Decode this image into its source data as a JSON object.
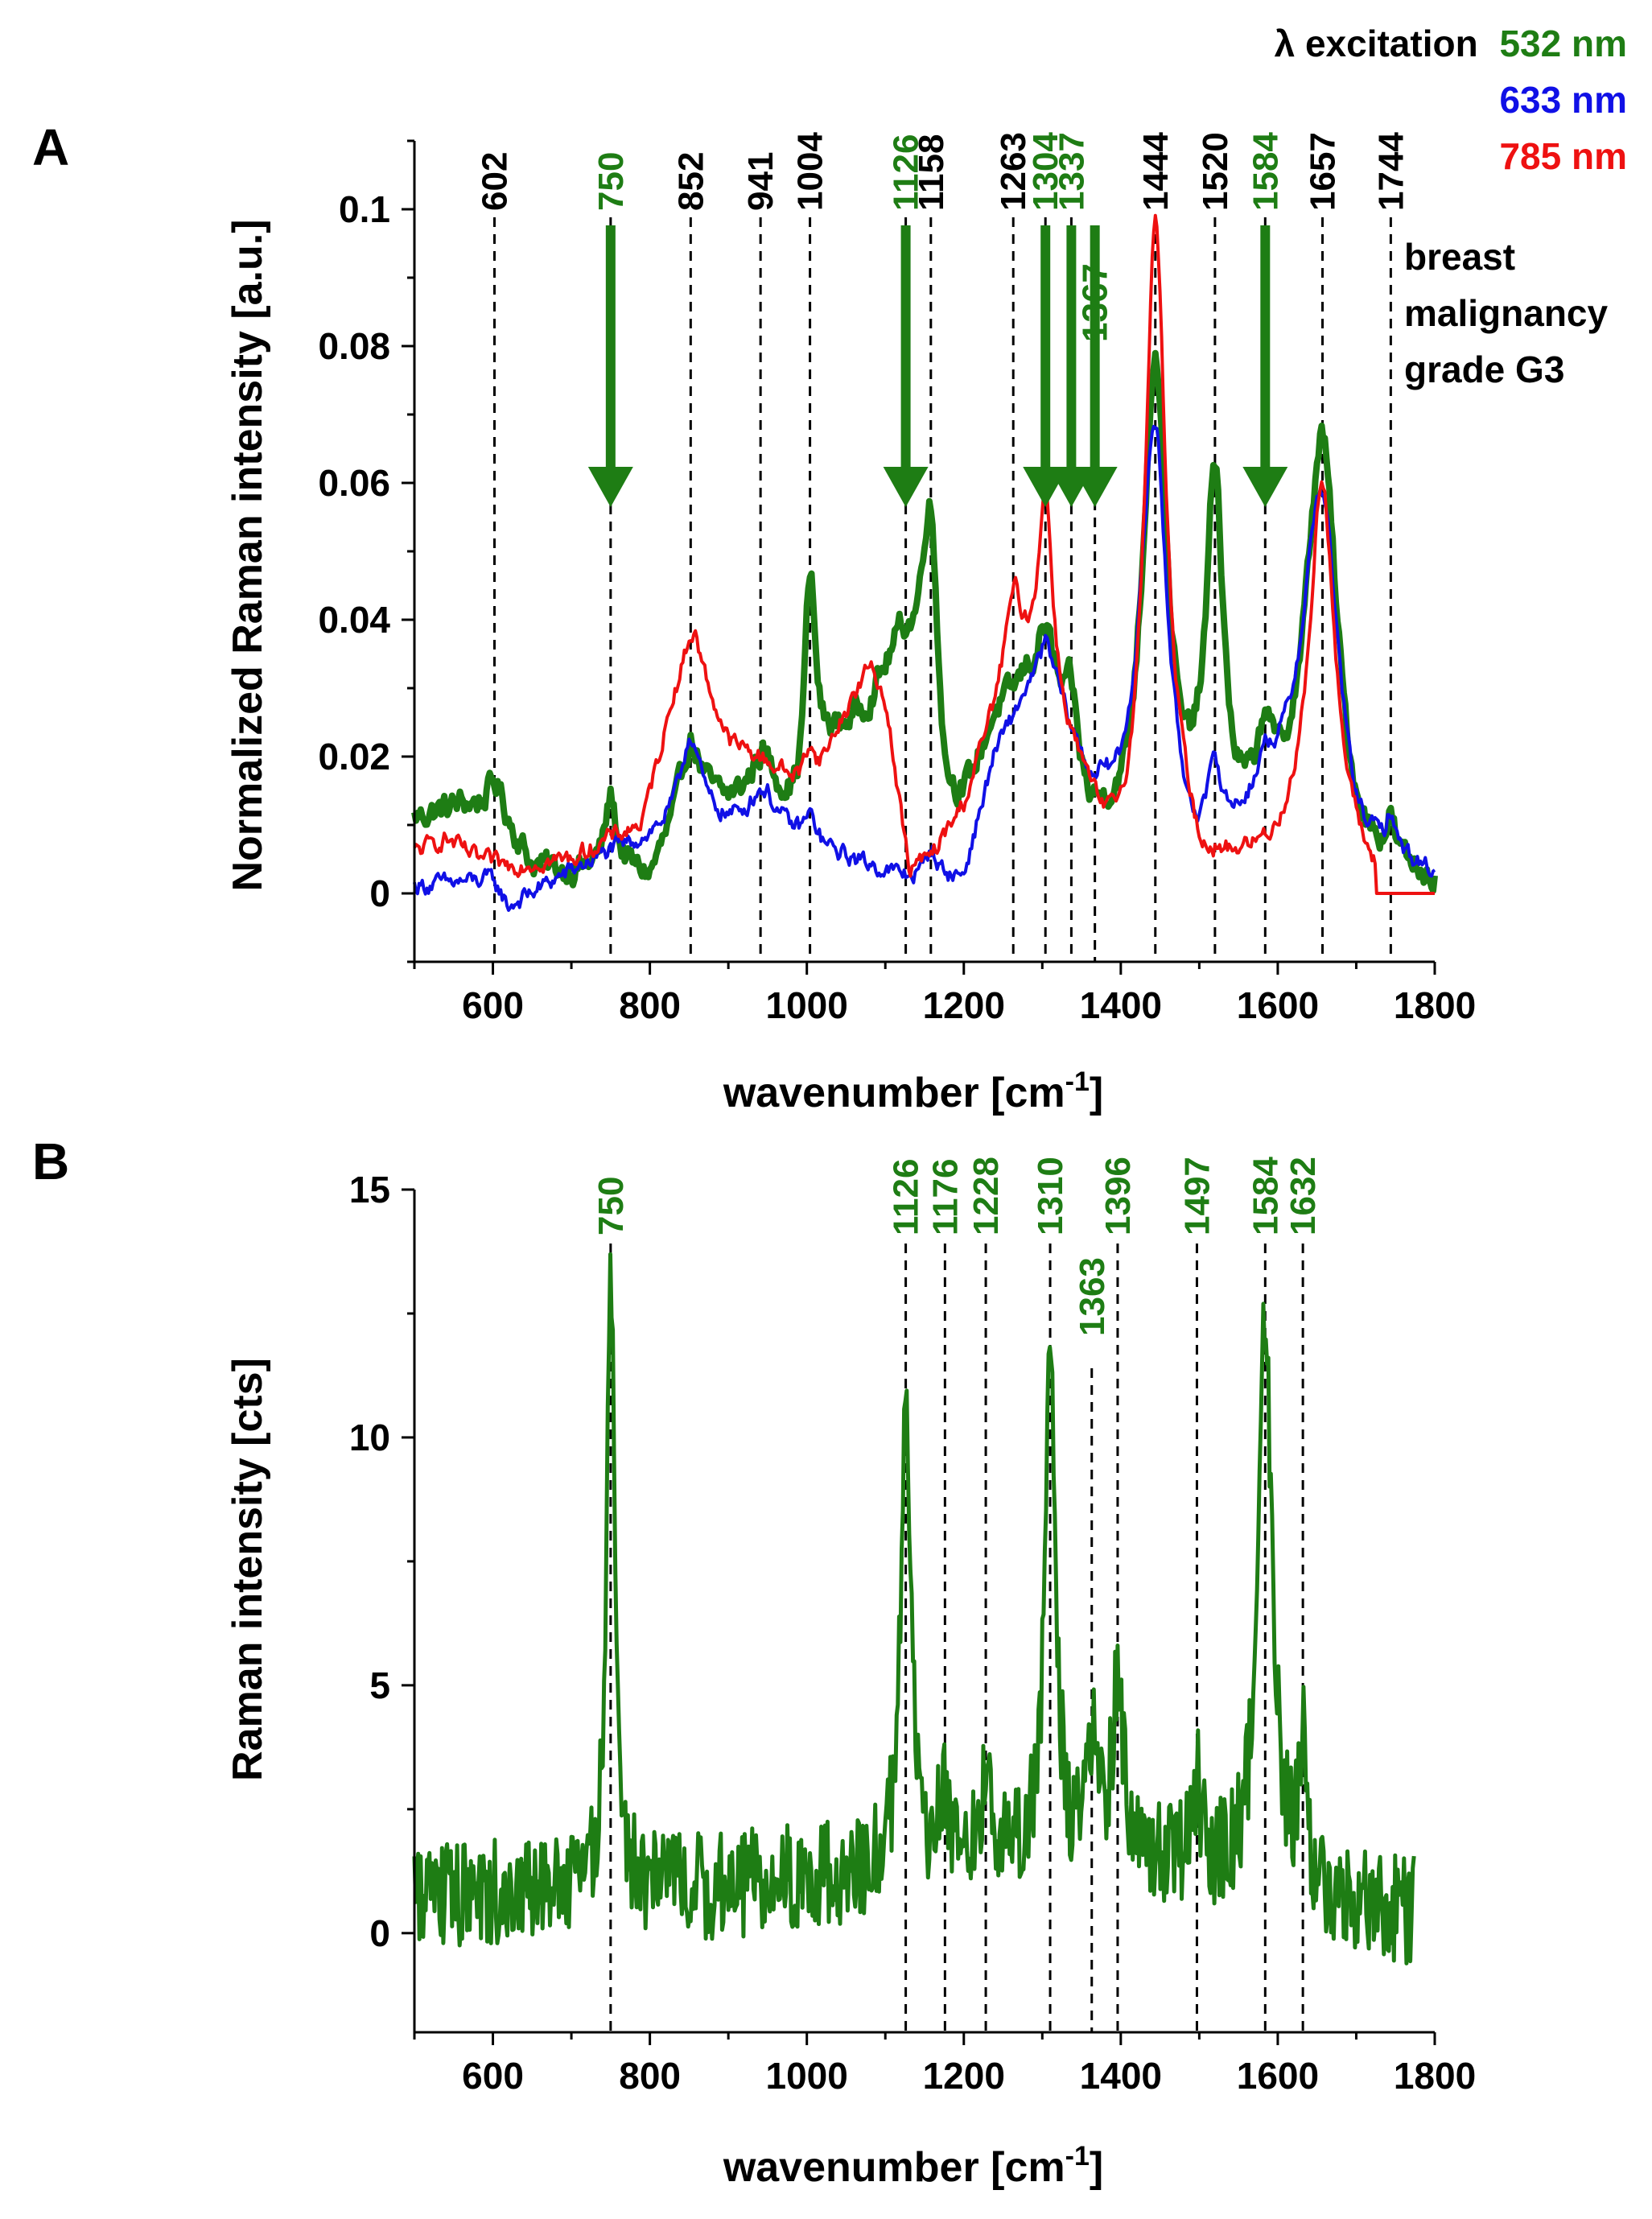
{
  "colors": {
    "green": "#1e7d14",
    "blue": "#1010e6",
    "red": "#ee1111",
    "black": "#000000"
  },
  "legend": {
    "prefix": "λ excitation",
    "entries": [
      {
        "label": "532 nm",
        "color": "#1e7d14"
      },
      {
        "label": "633 nm",
        "color": "#1010e6"
      },
      {
        "label": "785 nm",
        "color": "#ee1111"
      }
    ]
  },
  "annotation": {
    "lines": [
      "breast",
      "malignancy",
      "grade G3"
    ]
  },
  "chart_data": [
    {
      "panel": "A",
      "type": "line",
      "xlabel": "wavenumber [cm",
      "xlabel_sup": "-1",
      "xlabel_tail": "]",
      "ylabel": "Normalized Raman intensity [a.u.]",
      "xlim": [
        500,
        1800
      ],
      "ylim": [
        -0.01,
        0.11
      ],
      "xticks": [
        600,
        800,
        1000,
        1200,
        1400,
        1600,
        1800
      ],
      "yticks": [
        0,
        0.02,
        0.04,
        0.06,
        0.08,
        0.1
      ],
      "ytick_labels": [
        "0",
        "0.02",
        "0.04",
        "0.06",
        "0.08",
        "0.1"
      ],
      "peak_lines": [
        {
          "x": 602,
          "label": "602",
          "color": "black",
          "arrow": false
        },
        {
          "x": 750,
          "label": "750",
          "color": "green",
          "arrow": true
        },
        {
          "x": 852,
          "label": "852",
          "color": "black",
          "arrow": false
        },
        {
          "x": 941,
          "label": "941",
          "color": "black",
          "arrow": false
        },
        {
          "x": 1004,
          "label": "1004",
          "color": "black",
          "arrow": false
        },
        {
          "x": 1126,
          "label": "1126",
          "color": "green",
          "arrow": true
        },
        {
          "x": 1158,
          "label": "1158",
          "color": "black",
          "arrow": false
        },
        {
          "x": 1263,
          "label": "1263",
          "color": "black",
          "arrow": false
        },
        {
          "x": 1304,
          "label": "1304",
          "color": "green",
          "arrow": true
        },
        {
          "x": 1337,
          "label": "1337",
          "color": "green",
          "arrow": true
        },
        {
          "x": 1367,
          "label": "1367",
          "color": "green",
          "arrow": true,
          "low": true
        },
        {
          "x": 1444,
          "label": "1444",
          "color": "black",
          "arrow": false
        },
        {
          "x": 1520,
          "label": "1520",
          "color": "black",
          "arrow": false
        },
        {
          "x": 1584,
          "label": "1584",
          "color": "green",
          "arrow": true
        },
        {
          "x": 1657,
          "label": "1657",
          "color": "black",
          "arrow": false
        },
        {
          "x": 1744,
          "label": "1744",
          "color": "black",
          "arrow": false
        }
      ],
      "series": [
        {
          "name": "532 nm",
          "color": "#1e7d14",
          "width": 8,
          "noise": 0.0018,
          "baseline": [
            [
              500,
              0.011
            ],
            [
              560,
              0.013
            ],
            [
              610,
              0.012
            ],
            [
              650,
              0.004
            ],
            [
              700,
              0.003
            ],
            [
              760,
              0.004
            ],
            [
              800,
              0.002
            ],
            [
              850,
              0.014
            ],
            [
              900,
              0.013
            ],
            [
              950,
              0.016
            ],
            [
              990,
              0.01
            ],
            [
              1030,
              0.021
            ],
            [
              1080,
              0.027
            ],
            [
              1120,
              0.036
            ],
            [
              1150,
              0.03
            ],
            [
              1175,
              0.01
            ],
            [
              1200,
              0.012
            ],
            [
              1240,
              0.025
            ],
            [
              1280,
              0.03
            ],
            [
              1320,
              0.025
            ],
            [
              1360,
              0.01
            ],
            [
              1400,
              0.008
            ],
            [
              1430,
              0.014
            ],
            [
              1480,
              0.008
            ],
            [
              1500,
              0.01
            ],
            [
              1545,
              0.008
            ],
            [
              1600,
              0.01
            ],
            [
              1640,
              0.014
            ],
            [
              1700,
              0.003
            ],
            [
              1740,
              0.003
            ],
            [
              1800,
              0.001
            ]
          ],
          "peaks": [
            [
              602,
              0.004,
              10
            ],
            [
              750,
              0.01,
              8
            ],
            [
              852,
              0.008,
              15
            ],
            [
              941,
              0.004,
              12
            ],
            [
              1004,
              0.032,
              9
            ],
            [
              1158,
              0.032,
              12
            ],
            [
              1304,
              0.01,
              12
            ],
            [
              1337,
              0.009,
              8
            ],
            [
              1444,
              0.065,
              17
            ],
            [
              1520,
              0.05,
              12
            ],
            [
              1584,
              0.011,
              10
            ],
            [
              1657,
              0.055,
              22
            ],
            [
              1744,
              0.005,
              6
            ]
          ]
        },
        {
          "name": "633 nm",
          "color": "#1010e6",
          "width": 4,
          "noise": 0.0012,
          "baseline": [
            [
              500,
              0.001
            ],
            [
              600,
              0.002
            ],
            [
              620,
              -0.002
            ],
            [
              680,
              0.002
            ],
            [
              750,
              0.006
            ],
            [
              800,
              0.008
            ],
            [
              850,
              0.011
            ],
            [
              900,
              0.01
            ],
            [
              950,
              0.012
            ],
            [
              1000,
              0.006
            ],
            [
              1050,
              0.005
            ],
            [
              1100,
              0.003
            ],
            [
              1150,
              0.001
            ],
            [
              1200,
              0.002
            ],
            [
              1240,
              0.02
            ],
            [
              1280,
              0.028
            ],
            [
              1320,
              0.027
            ],
            [
              1360,
              0.015
            ],
            [
              1400,
              0.013
            ],
            [
              1430,
              0.02
            ],
            [
              1480,
              0.006
            ],
            [
              1500,
              0.004
            ],
            [
              1545,
              0.008
            ],
            [
              1600,
              0.015
            ],
            [
              1640,
              0.02
            ],
            [
              1700,
              0.004
            ],
            [
              1750,
              0.004
            ],
            [
              1800,
              0.002
            ]
          ],
          "peaks": [
            [
              852,
              0.012,
              15
            ],
            [
              941,
              0.003,
              15
            ],
            [
              1004,
              0.005,
              12
            ],
            [
              1158,
              0.005,
              10
            ],
            [
              1304,
              0.008,
              12
            ],
            [
              1444,
              0.052,
              18
            ],
            [
              1520,
              0.01,
              10
            ],
            [
              1584,
              0.004,
              10
            ],
            [
              1657,
              0.043,
              24
            ],
            [
              1744,
              0.005,
              6
            ]
          ]
        },
        {
          "name": "785 nm",
          "color": "#ee1111",
          "width": 4,
          "noise": 0.0012,
          "baseline": [
            [
              500,
              0.006
            ],
            [
              540,
              0.008
            ],
            [
              580,
              0.005
            ],
            [
              620,
              0.004
            ],
            [
              700,
              0.005
            ],
            [
              750,
              0.008
            ],
            [
              790,
              0.01
            ],
            [
              830,
              0.028
            ],
            [
              860,
              0.033
            ],
            [
              900,
              0.022
            ],
            [
              950,
              0.019
            ],
            [
              990,
              0.016
            ],
            [
              1010,
              0.016
            ],
            [
              1040,
              0.024
            ],
            [
              1080,
              0.033
            ],
            [
              1100,
              0.028
            ],
            [
              1130,
              0.003
            ],
            [
              1160,
              0.005
            ],
            [
              1200,
              0.012
            ],
            [
              1230,
              0.022
            ],
            [
              1265,
              0.032
            ],
            [
              1300,
              0.028
            ],
            [
              1340,
              0.018
            ],
            [
              1380,
              0.006
            ],
            [
              1410,
              0.003
            ],
            [
              1440,
              0.006
            ],
            [
              1480,
              0.006
            ],
            [
              1500,
              0.001
            ],
            [
              1540,
              0.003
            ],
            [
              1600,
              0.005
            ],
            [
              1640,
              0.01
            ],
            [
              1700,
              0.004
            ],
            [
              1730,
              0.0
            ],
            [
              1800,
              0.0
            ]
          ],
          "peaks": [
            [
              852,
              0.006,
              12
            ],
            [
              1004,
              0.006,
              8
            ],
            [
              1263,
              0.01,
              14
            ],
            [
              1304,
              0.03,
              11
            ],
            [
              1444,
              0.092,
              16
            ],
            [
              1657,
              0.052,
              18
            ]
          ]
        }
      ]
    },
    {
      "panel": "B",
      "type": "line",
      "xlabel": "wavenumber [cm",
      "xlabel_sup": "-1",
      "xlabel_tail": "]",
      "ylabel": "Raman intensity [cts]",
      "xlim": [
        500,
        1800
      ],
      "ylim": [
        -2,
        15
      ],
      "xticks": [
        600,
        800,
        1000,
        1200,
        1400,
        1600,
        1800
      ],
      "yticks": [
        0,
        5,
        10,
        15
      ],
      "ytick_labels": [
        "0",
        "5",
        "10",
        "15"
      ],
      "peak_lines": [
        {
          "x": 750,
          "label": "750",
          "color": "green"
        },
        {
          "x": 1126,
          "label": "1126",
          "color": "green"
        },
        {
          "x": 1176,
          "label": "1176",
          "color": "green"
        },
        {
          "x": 1228,
          "label": "1228",
          "color": "green"
        },
        {
          "x": 1310,
          "label": "1310",
          "color": "green"
        },
        {
          "x": 1363,
          "label": "1363",
          "color": "green",
          "low": true
        },
        {
          "x": 1396,
          "label": "1396",
          "color": "green"
        },
        {
          "x": 1497,
          "label": "1497",
          "color": "green"
        },
        {
          "x": 1584,
          "label": "1584",
          "color": "green"
        },
        {
          "x": 1632,
          "label": "1632",
          "color": "green"
        }
      ],
      "series": [
        {
          "name": "532 nm",
          "color": "#1e7d14",
          "width": 5,
          "noise": 1.1,
          "xmax": 1775,
          "baseline": [
            [
              500,
              0.8
            ],
            [
              800,
              0.8
            ],
            [
              1100,
              1.2
            ],
            [
              1400,
              1.5
            ],
            [
              1700,
              0.6
            ],
            [
              1775,
              0.4
            ]
          ],
          "peaks": [
            [
              750,
              13.2,
              6
            ],
            [
              1126,
              9.0,
              8
            ],
            [
              1176,
              1.5,
              8
            ],
            [
              1228,
              1.4,
              8
            ],
            [
              1310,
              10.5,
              8
            ],
            [
              1363,
              2.2,
              7
            ],
            [
              1396,
              3.6,
              8
            ],
            [
              1497,
              1.6,
              8
            ],
            [
              1584,
              11.2,
              11
            ],
            [
              1632,
              2.8,
              6
            ]
          ]
        }
      ]
    }
  ]
}
